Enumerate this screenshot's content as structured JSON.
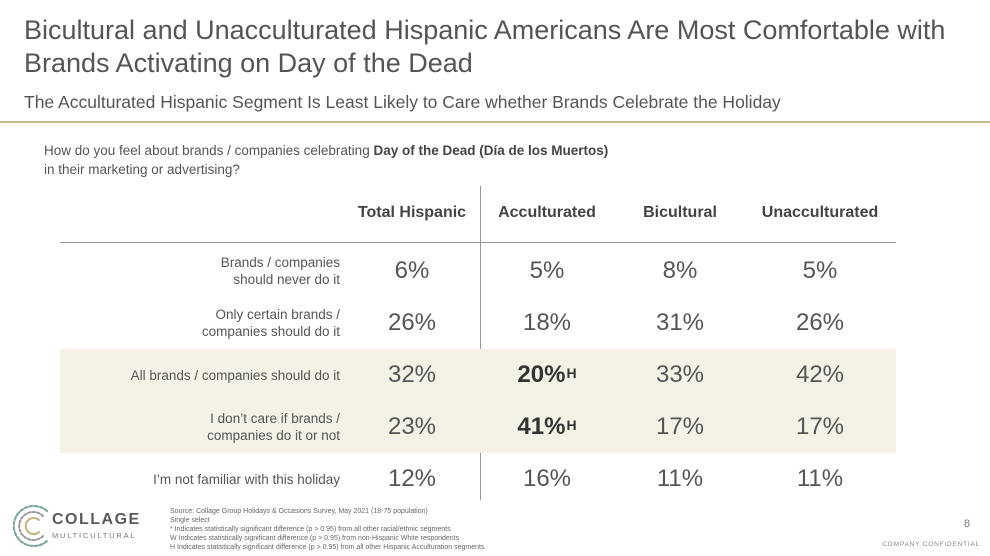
{
  "title": "Bicultural and Unacculturated Hispanic Americans Are Most Comfortable with Brands Activating on Day of the Dead",
  "subtitle": "The Acculturated Hispanic Segment Is Least Likely to Care whether Brands Celebrate the Holiday",
  "question": {
    "prefix": "How do you feel about brands / companies celebrating ",
    "bold": "Day of the Dead (Día de los Muertos)",
    "suffix": " in their marketing or advertising?"
  },
  "colors": {
    "accent_rule": "#c9b888",
    "shade": "#f4f1e6",
    "text": "#555555"
  },
  "chart_data": {
    "type": "table",
    "columns": [
      "Total Hispanic",
      "Acculturated",
      "Bicultural",
      "Unacculturated"
    ],
    "rows": [
      {
        "label_lines": [
          "Brands / companies",
          "should never do it"
        ],
        "shaded": false,
        "cells": [
          {
            "text": "6%",
            "sup": "",
            "bold": false
          },
          {
            "text": "5%",
            "sup": "",
            "bold": false
          },
          {
            "text": "8%",
            "sup": "",
            "bold": false
          },
          {
            "text": "5%",
            "sup": "",
            "bold": false
          }
        ]
      },
      {
        "label_lines": [
          "Only certain brands /",
          "companies should do it"
        ],
        "shaded": false,
        "cells": [
          {
            "text": "26%",
            "sup": "",
            "bold": false
          },
          {
            "text": "18%",
            "sup": "",
            "bold": false
          },
          {
            "text": "31%",
            "sup": "",
            "bold": false
          },
          {
            "text": "26%",
            "sup": "",
            "bold": false
          }
        ]
      },
      {
        "label_lines": [
          "All brands / companies should do it"
        ],
        "shaded": true,
        "cells": [
          {
            "text": "32%",
            "sup": "",
            "bold": false
          },
          {
            "text": "20%",
            "sup": "H",
            "bold": true
          },
          {
            "text": "33%",
            "sup": "",
            "bold": false
          },
          {
            "text": "42%",
            "sup": "",
            "bold": false
          }
        ]
      },
      {
        "label_lines": [
          "I don’t care if brands /",
          "companies do it or not"
        ],
        "shaded": true,
        "cells": [
          {
            "text": "23%",
            "sup": "",
            "bold": false
          },
          {
            "text": "41%",
            "sup": "H",
            "bold": true
          },
          {
            "text": "17%",
            "sup": "",
            "bold": false
          },
          {
            "text": "17%",
            "sup": "",
            "bold": false
          }
        ]
      },
      {
        "label_lines": [
          "I’m not familiar with this holiday"
        ],
        "shaded": false,
        "cells": [
          {
            "text": "12%",
            "sup": "",
            "bold": false
          },
          {
            "text": "16%",
            "sup": "",
            "bold": false
          },
          {
            "text": "11%",
            "sup": "",
            "bold": false
          },
          {
            "text": "11%",
            "sup": "",
            "bold": false
          }
        ]
      }
    ]
  },
  "footnotes": [
    "Source: Collage Group Holidays & Occasions Survey, May 2021 (18-75 population)",
    "Single select",
    "* Indicates statistically significant difference (p > 0.95) from all other racial/ethnic segments",
    "W Indicates statistically significant difference (p > 0.95) from non-Hispanic White respondents",
    "H Indicates statistically significant difference (p > 0.95) from all other Hispanic Acculturation segments"
  ],
  "logo": {
    "word": "COLLAGE",
    "sub": "MULTICULTURAL"
  },
  "page_number": "8",
  "confidential": "COMPANY CONFIDENTIAL"
}
